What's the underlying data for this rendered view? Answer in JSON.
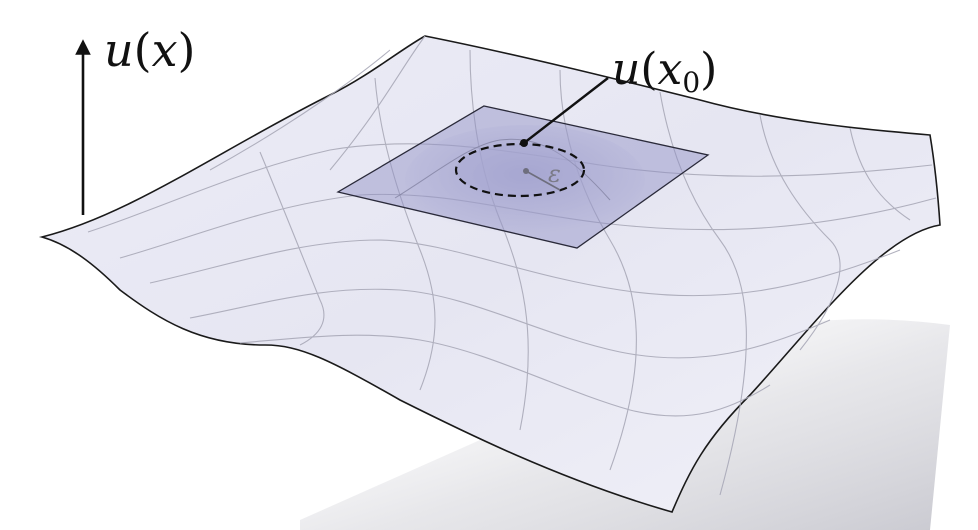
{
  "diagram": {
    "axis_label": {
      "func": "u",
      "var": "x"
    },
    "point_label": {
      "func": "u",
      "var": "x",
      "sub": "0"
    },
    "radius_label": "ε"
  },
  "colors": {
    "surface_fill": "#e9e9f5",
    "surface_edge": "#1a1a1a",
    "grid": "#a9a9b8",
    "plane_fill": "#8f8fc4",
    "plane_edge": "#2a2a3a",
    "shadow": "#cfcfd6"
  }
}
